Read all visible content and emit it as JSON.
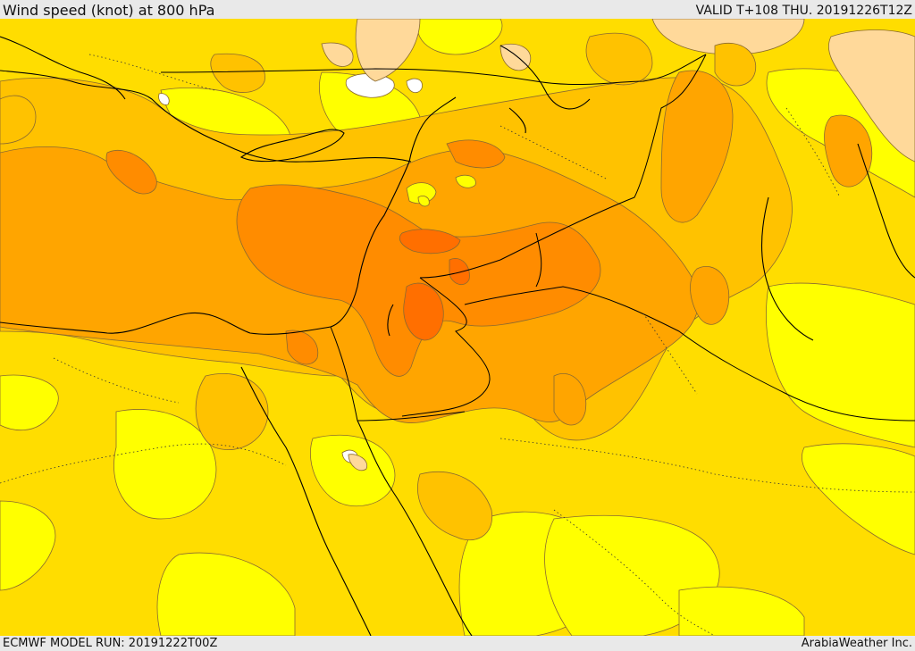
{
  "header": {
    "title": "Wind speed (knot) at 800 hPa",
    "valid_time": "VALID T+108 THU. 20191226T12Z"
  },
  "footer": {
    "model_run": "ECMWF MODEL RUN: 20191222T00Z",
    "credit": "ArabiaWeather Inc."
  },
  "map": {
    "variable": "wind speed",
    "unit": "knot",
    "level": "800 hPa",
    "colors": {
      "band_lowest": "#ffffff",
      "band_low": "#ffff00",
      "band_light": "#ffdd00",
      "band_medium": "#ffc200",
      "band_strong": "#ffa500",
      "band_stronger": "#ff8c00",
      "band_peak": "#ff6f00",
      "band_tan": "#ffd99a",
      "border_line": "#000000",
      "contour_line": "#8a6a30"
    }
  }
}
